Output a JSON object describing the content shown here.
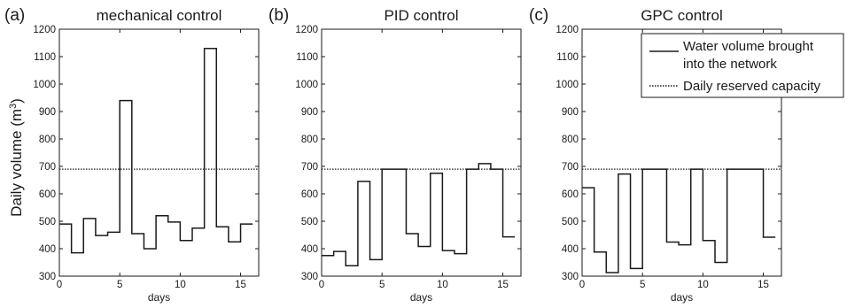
{
  "ylabel_main": "Daily volume (m",
  "ylabel_sup": "3",
  "ylabel_close": ")",
  "legend": {
    "solid_label_line1": "Water volume brought",
    "solid_label_line2": "into the network",
    "dotted_label": "Daily reserved capacity"
  },
  "colors": {
    "line": "#1a1a1a",
    "background": "#ffffff"
  },
  "chart_data": [
    {
      "type": "line",
      "step": "post",
      "letter": "(a)",
      "title": "mechanical control",
      "xlabel": "days",
      "xlim": [
        0,
        16.5
      ],
      "ylim": [
        300,
        1200
      ],
      "xticks": [
        0,
        5,
        10,
        15
      ],
      "yticks": [
        300,
        400,
        500,
        600,
        700,
        800,
        900,
        1000,
        1100,
        1200
      ],
      "reserved_capacity": 690,
      "x": [
        0,
        1,
        2,
        3,
        4,
        5,
        6,
        7,
        8,
        9,
        10,
        11,
        12,
        13,
        14,
        15,
        16
      ],
      "values": [
        490,
        385,
        510,
        448,
        460,
        940,
        455,
        400,
        520,
        497,
        430,
        475,
        1130,
        480,
        425,
        490,
        490
      ]
    },
    {
      "type": "line",
      "step": "post",
      "letter": "(b)",
      "title": "PID control",
      "xlabel": "days",
      "xlim": [
        0,
        16.5
      ],
      "ylim": [
        300,
        1200
      ],
      "xticks": [
        0,
        5,
        10,
        15
      ],
      "yticks": [
        300,
        400,
        500,
        600,
        700,
        800,
        900,
        1000,
        1100,
        1200
      ],
      "reserved_capacity": 690,
      "x": [
        0,
        1,
        2,
        3,
        4,
        5,
        6,
        7,
        8,
        9,
        10,
        11,
        12,
        13,
        14,
        15,
        16
      ],
      "values": [
        375,
        390,
        338,
        645,
        360,
        690,
        690,
        455,
        408,
        675,
        393,
        382,
        690,
        710,
        690,
        443,
        443
      ]
    },
    {
      "type": "line",
      "step": "post",
      "letter": "(c)",
      "title": "GPC control",
      "xlabel": "days",
      "xlim": [
        0,
        16.5
      ],
      "ylim": [
        300,
        1200
      ],
      "xticks": [
        0,
        5,
        10,
        15
      ],
      "yticks": [
        300,
        400,
        500,
        600,
        700,
        800,
        900,
        1000,
        1100,
        1200
      ],
      "reserved_capacity": 690,
      "x": [
        0,
        1,
        2,
        3,
        4,
        5,
        6,
        7,
        8,
        9,
        10,
        11,
        12,
        13,
        14,
        15,
        16
      ],
      "values": [
        622,
        388,
        313,
        672,
        328,
        690,
        690,
        424,
        414,
        690,
        430,
        350,
        690,
        690,
        690,
        442,
        442
      ]
    }
  ]
}
